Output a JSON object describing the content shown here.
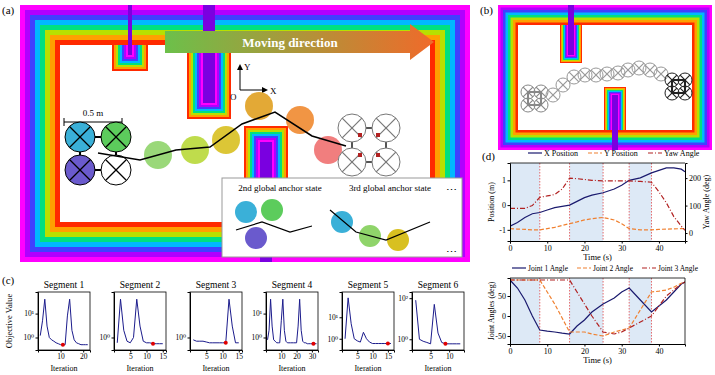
{
  "diagram": {
    "panel_labels": [
      "(a)",
      "(b)",
      "(c)",
      "(d)"
    ],
    "arrow_text": "Moving direction",
    "scale_bar": "0.5 m",
    "axes": [
      "X",
      "Y",
      "O"
    ],
    "inset_labels": [
      "2nd global anchor state",
      "3rd global anchor state"
    ],
    "ellipsis": "⋯"
  },
  "chart_data": [
    {
      "type": "line",
      "title": "Segment 1",
      "xlabel": "Iteration",
      "ylabel": "Objective Value",
      "log": "y",
      "x": [
        1,
        2,
        3,
        4,
        5,
        6,
        7,
        8,
        9,
        10,
        11,
        12,
        13,
        14,
        15,
        16,
        17,
        18,
        19,
        20,
        21,
        22
      ],
      "series": [
        {
          "color": "#1c1c8c",
          "values": [
            1.2,
            5,
            40,
            3,
            1,
            0.8,
            0.7,
            0.6,
            0.55,
            0.5,
            0.5,
            0.5,
            8,
            40,
            2,
            0.8,
            0.6,
            0.55,
            0.5,
            0.5,
            0.5,
            0.5
          ]
        }
      ],
      "best": {
        "x": 11,
        "y": 0.5
      },
      "xlim": [
        0,
        23
      ],
      "xticks": [
        10,
        20
      ],
      "ylim": [
        0.3,
        80
      ],
      "yticks": [
        {
          "value": 1,
          "label": "10⁰"
        },
        {
          "value": 10,
          "label": "10¹"
        }
      ]
    },
    {
      "type": "line",
      "title": "Segment 2",
      "xlabel": "Iteration",
      "log": "y",
      "x": [
        1,
        2,
        3,
        4,
        5,
        6,
        7,
        8,
        9,
        10,
        11,
        12,
        13,
        14,
        15
      ],
      "series": [
        {
          "color": "#1c1c8c",
          "values": [
            0.6,
            40,
            2,
            0.7,
            0.6,
            1,
            40,
            3,
            0.7,
            0.6,
            0.6,
            0.55,
            0.55,
            0.55,
            0.55
          ]
        }
      ],
      "best": {
        "x": 12,
        "y": 0.55
      },
      "xlim": [
        0,
        16
      ],
      "xticks": [
        5,
        10,
        15
      ],
      "ylim": [
        0.3,
        80
      ],
      "yticks": [
        {
          "value": 1,
          "label": "10⁰"
        }
      ]
    },
    {
      "type": "line",
      "title": "Segment 3",
      "xlabel": "Iteration",
      "log": "y",
      "x": [
        1,
        2,
        3,
        4,
        5,
        6,
        7,
        8,
        9,
        10,
        11,
        12,
        13,
        14,
        15
      ],
      "series": [
        {
          "color": "#1c1c8c",
          "values": [
            0.8,
            0.7,
            0.7,
            0.7,
            0.65,
            0.6,
            0.6,
            0.6,
            0.6,
            0.6,
            0.6,
            40,
            3,
            0.6,
            0.6
          ]
        }
      ],
      "best": {
        "x": 11,
        "y": 0.6
      },
      "xlim": [
        0,
        16
      ],
      "xticks": [
        5,
        10,
        15
      ],
      "ylim": [
        0.3,
        80
      ],
      "yticks": [
        {
          "value": 1,
          "label": "10⁰"
        }
      ]
    },
    {
      "type": "line",
      "title": "Segment 4",
      "xlabel": "Iteration",
      "log": "y",
      "x": [
        1,
        2,
        3,
        4,
        5,
        6,
        7,
        8,
        9,
        10,
        11,
        12,
        13,
        14,
        15,
        16,
        17,
        18,
        19,
        20,
        21,
        22,
        23,
        24,
        25,
        26,
        27,
        28,
        29,
        30,
        31,
        32,
        33
      ],
      "series": [
        {
          "color": "#1c1c8c",
          "values": [
            0.8,
            2,
            40,
            3,
            0.8,
            0.7,
            0.6,
            0.6,
            0.6,
            5,
            40,
            2,
            0.7,
            0.6,
            0.6,
            0.6,
            0.6,
            0.6,
            0.6,
            0.6,
            3,
            40,
            2,
            0.7,
            0.6,
            0.6,
            0.55,
            0.55,
            0.55,
            0.55,
            0.55,
            0.55,
            0.55
          ]
        }
      ],
      "best": {
        "x": 31,
        "y": 0.55
      },
      "xlim": [
        0,
        34
      ],
      "xticks": [
        10,
        20,
        30
      ],
      "ylim": [
        0.3,
        80
      ],
      "yticks": [
        {
          "value": 1,
          "label": "10⁰"
        },
        {
          "value": 10,
          "label": "10¹"
        }
      ]
    },
    {
      "type": "line",
      "title": "Segment 5",
      "xlabel": "Iteration",
      "log": "y",
      "x": [
        1,
        2,
        3,
        4,
        5,
        6,
        7,
        8,
        9,
        10,
        11,
        12,
        13,
        14,
        15,
        16
      ],
      "series": [
        {
          "color": "#1c1c8c",
          "values": [
            1,
            80,
            5,
            1,
            0.8,
            0.7,
            2,
            1,
            0.7,
            0.6,
            0.6,
            0.6,
            0.6,
            0.6,
            0.6,
            0.6
          ]
        }
      ],
      "best": {
        "x": 15,
        "y": 0.6
      },
      "xlim": [
        0,
        17
      ],
      "xticks": [
        5,
        10,
        15
      ],
      "ylim": [
        0.3,
        150
      ],
      "yticks": [
        {
          "value": 1,
          "label": "10⁰"
        },
        {
          "value": 10,
          "label": "10¹"
        }
      ]
    },
    {
      "type": "line",
      "title": "Segment 6",
      "xlabel": "Iteration",
      "log": "y",
      "x": [
        1,
        2,
        3,
        4,
        5,
        6,
        7,
        8,
        9,
        10,
        11,
        12,
        13
      ],
      "series": [
        {
          "color": "#1c1c8c",
          "values": [
            80,
            1,
            0.8,
            0.7,
            0.6,
            50,
            2,
            0.7,
            0.6,
            0.6,
            0.6,
            0.6,
            0.6
          ]
        }
      ],
      "best": {
        "x": 9,
        "y": 0.6
      },
      "xlim": [
        0,
        14
      ],
      "xticks": [
        5,
        10
      ],
      "ylim": [
        0.3,
        200
      ],
      "yticks": [
        {
          "value": 1,
          "label": "10⁰"
        },
        {
          "value": 100,
          "label": "10²"
        }
      ]
    },
    {
      "type": "line",
      "xlabel": "Time (s)",
      "ylabel": "Position (m)",
      "y2label": "Yaw Angle (deg)",
      "legend": "top",
      "x": [
        0,
        2,
        4,
        6,
        8,
        10,
        12,
        14,
        16,
        18,
        20,
        22,
        25,
        28,
        30,
        32,
        35,
        38,
        40,
        42,
        44,
        46,
        47
      ],
      "segment_bounds": [
        0,
        8,
        16,
        25,
        32,
        38,
        47
      ],
      "series": [
        {
          "name": "X Position",
          "color": "#1a1a6e",
          "line_style": "solid",
          "values": [
            -0.85,
            -0.7,
            -0.5,
            -0.35,
            -0.3,
            -0.2,
            -0.1,
            -0.05,
            0,
            0.15,
            0.3,
            0.4,
            0.5,
            0.65,
            0.8,
            1,
            1.1,
            1.3,
            1.4,
            1.5,
            1.5,
            1.45,
            1.35
          ]
        },
        {
          "name": "Y Position",
          "color": "#f08030",
          "line_style": "dashed",
          "values": [
            -0.95,
            -0.97,
            -0.98,
            -1,
            -1,
            -0.95,
            -0.9,
            -0.82,
            -0.75,
            -0.68,
            -0.6,
            -0.55,
            -0.5,
            -0.6,
            -0.75,
            -0.95,
            -1,
            -1,
            -0.98,
            -0.97,
            -0.96,
            -0.95,
            -0.95
          ]
        },
        {
          "name": "Yaw Angle",
          "color": "#b22222",
          "line_style": "dashdot",
          "axis": "y2",
          "values": [
            90,
            90,
            90,
            100,
            130,
            135,
            140,
            160,
            200,
            198,
            195,
            192,
            190,
            190,
            190,
            190,
            188,
            185,
            150,
            110,
            60,
            25,
            10
          ]
        }
      ],
      "xlim": [
        0,
        47
      ],
      "xticks": [
        0,
        10,
        20,
        30,
        40
      ],
      "ylim": [
        -1.45,
        1.7
      ],
      "yticks": [
        -1,
        0,
        1
      ],
      "y2lim": [
        -29,
        255
      ],
      "y2ticks": [
        0,
        100,
        200
      ]
    },
    {
      "type": "line",
      "xlabel": "Time (s)",
      "ylabel": "Joint Angles (deg)",
      "legend": "top",
      "x": [
        0,
        2,
        4,
        6,
        8,
        10,
        12,
        14,
        16,
        18,
        20,
        22,
        25,
        28,
        30,
        32,
        35,
        38,
        40,
        42,
        44,
        46,
        47
      ],
      "segment_bounds": [
        0,
        8,
        16,
        25,
        32,
        38,
        47
      ],
      "series": [
        {
          "name": "Joint 1 Angle",
          "color": "#1a1a6e",
          "line_style": "solid",
          "values": [
            90,
            70,
            40,
            0,
            -35,
            -38,
            -40,
            -43,
            -45,
            -25,
            -10,
            10,
            30,
            45,
            60,
            70,
            40,
            10,
            25,
            40,
            60,
            80,
            85
          ]
        },
        {
          "name": "Joint 2 Angle",
          "color": "#f08030",
          "line_style": "dashed",
          "values": [
            90,
            90,
            90,
            90,
            90,
            60,
            30,
            -5,
            -40,
            -40,
            -40,
            -45,
            -50,
            -40,
            -35,
            -30,
            15,
            60,
            62,
            65,
            72,
            82,
            85
          ]
        },
        {
          "name": "Joint 3 Angle",
          "color": "#b22222",
          "line_style": "dashdot",
          "values": [
            90,
            90,
            90,
            90,
            90,
            90,
            90,
            90,
            90,
            60,
            30,
            0,
            -40,
            -45,
            -40,
            -30,
            -15,
            0,
            25,
            50,
            65,
            80,
            85
          ]
        }
      ],
      "xlim": [
        0,
        47
      ],
      "xticks": [
        0,
        10,
        20,
        30,
        40
      ],
      "ylim": [
        -70,
        95
      ],
      "yticks": [
        -50,
        0,
        50
      ]
    }
  ]
}
